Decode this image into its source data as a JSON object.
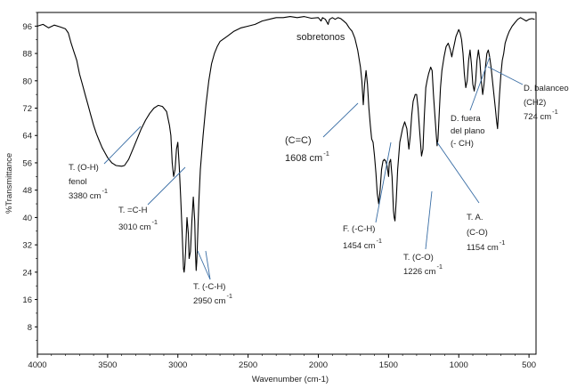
{
  "chart_data": {
    "type": "line",
    "title": "",
    "xlabel": "Wavenumber (cm-1)",
    "ylabel": "%Transmittance",
    "xlim": [
      4000,
      450
    ],
    "ylim": [
      0,
      100
    ],
    "x_ticks": [
      4000,
      3500,
      3000,
      2500,
      2000,
      1500,
      1000,
      500
    ],
    "y_ticks": [
      8,
      16,
      24,
      32,
      40,
      48,
      56,
      64,
      72,
      80,
      88,
      96
    ],
    "grid": false,
    "legend": "none",
    "series": [
      {
        "name": "spectrum",
        "color": "#000000",
        "points": [
          [
            4000,
            96
          ],
          [
            3960,
            96.5
          ],
          [
            3920,
            95.5
          ],
          [
            3880,
            96.3
          ],
          [
            3840,
            95.8
          ],
          [
            3800,
            95.2
          ],
          [
            3780,
            94
          ],
          [
            3760,
            91
          ],
          [
            3740,
            88.5
          ],
          [
            3720,
            86
          ],
          [
            3700,
            82
          ],
          [
            3680,
            79
          ],
          [
            3660,
            76
          ],
          [
            3640,
            73
          ],
          [
            3620,
            70
          ],
          [
            3600,
            67
          ],
          [
            3580,
            64.5
          ],
          [
            3560,
            62.5
          ],
          [
            3540,
            60.5
          ],
          [
            3520,
            59
          ],
          [
            3500,
            57.5
          ],
          [
            3470,
            56
          ],
          [
            3440,
            55.2
          ],
          [
            3400,
            55
          ],
          [
            3380,
            55.2
          ],
          [
            3350,
            57
          ],
          [
            3320,
            60
          ],
          [
            3290,
            63
          ],
          [
            3260,
            66
          ],
          [
            3230,
            68.5
          ],
          [
            3200,
            70.5
          ],
          [
            3170,
            72
          ],
          [
            3140,
            72.8
          ],
          [
            3110,
            72.5
          ],
          [
            3080,
            71
          ],
          [
            3060,
            67
          ],
          [
            3050,
            64
          ],
          [
            3040,
            56
          ],
          [
            3030,
            52
          ],
          [
            3020,
            54
          ],
          [
            3010,
            60
          ],
          [
            3000,
            62
          ],
          [
            2990,
            55
          ],
          [
            2980,
            46
          ],
          [
            2970,
            36
          ],
          [
            2960,
            25
          ],
          [
            2955,
            24
          ],
          [
            2950,
            26
          ],
          [
            2945,
            30
          ],
          [
            2935,
            40
          ],
          [
            2925,
            35
          ],
          [
            2920,
            28
          ],
          [
            2910,
            30
          ],
          [
            2900,
            39
          ],
          [
            2890,
            46
          ],
          [
            2880,
            39
          ],
          [
            2875,
            30
          ],
          [
            2870,
            24.5
          ],
          [
            2865,
            27
          ],
          [
            2860,
            33
          ],
          [
            2850,
            45
          ],
          [
            2840,
            54
          ],
          [
            2820,
            64
          ],
          [
            2800,
            73
          ],
          [
            2780,
            80
          ],
          [
            2760,
            85
          ],
          [
            2740,
            88
          ],
          [
            2720,
            90
          ],
          [
            2700,
            91.5
          ],
          [
            2650,
            93
          ],
          [
            2600,
            94.5
          ],
          [
            2550,
            95.5
          ],
          [
            2500,
            96
          ],
          [
            2450,
            96.5
          ],
          [
            2400,
            97.5
          ],
          [
            2350,
            98
          ],
          [
            2300,
            98.5
          ],
          [
            2250,
            98.5
          ],
          [
            2200,
            98.8
          ],
          [
            2150,
            98.5
          ],
          [
            2100,
            98.8
          ],
          [
            2050,
            98.3
          ],
          [
            2000,
            98.5
          ],
          [
            1980,
            97.5
          ],
          [
            1970,
            98.5
          ],
          [
            1950,
            98
          ],
          [
            1930,
            96.5
          ],
          [
            1920,
            98
          ],
          [
            1900,
            98.5
          ],
          [
            1880,
            98
          ],
          [
            1860,
            98.5
          ],
          [
            1840,
            98.2
          ],
          [
            1820,
            97.5
          ],
          [
            1800,
            96.8
          ],
          [
            1780,
            95.5
          ],
          [
            1760,
            94.5
          ],
          [
            1740,
            92.5
          ],
          [
            1720,
            89
          ],
          [
            1700,
            84
          ],
          [
            1690,
            80
          ],
          [
            1680,
            73
          ],
          [
            1670,
            79
          ],
          [
            1660,
            83
          ],
          [
            1650,
            79
          ],
          [
            1640,
            72
          ],
          [
            1630,
            67
          ],
          [
            1620,
            63
          ],
          [
            1610,
            62
          ],
          [
            1600,
            58
          ],
          [
            1590,
            53
          ],
          [
            1580,
            47
          ],
          [
            1570,
            44
          ],
          [
            1560,
            48
          ],
          [
            1550,
            54
          ],
          [
            1540,
            56.5
          ],
          [
            1530,
            57
          ],
          [
            1520,
            56.5
          ],
          [
            1510,
            55
          ],
          [
            1500,
            52
          ],
          [
            1495,
            56
          ],
          [
            1485,
            57
          ],
          [
            1475,
            52
          ],
          [
            1465,
            42
          ],
          [
            1460,
            40
          ],
          [
            1454,
            39
          ],
          [
            1445,
            45
          ],
          [
            1435,
            54
          ],
          [
            1420,
            62
          ],
          [
            1400,
            66
          ],
          [
            1385,
            68
          ],
          [
            1370,
            66
          ],
          [
            1355,
            60
          ],
          [
            1345,
            64
          ],
          [
            1335,
            70
          ],
          [
            1325,
            74
          ],
          [
            1310,
            76
          ],
          [
            1300,
            76
          ],
          [
            1290,
            72
          ],
          [
            1280,
            66
          ],
          [
            1265,
            58
          ],
          [
            1255,
            60
          ],
          [
            1245,
            70
          ],
          [
            1235,
            78
          ],
          [
            1226,
            80
          ],
          [
            1215,
            82
          ],
          [
            1200,
            84
          ],
          [
            1190,
            83
          ],
          [
            1180,
            76
          ],
          [
            1170,
            70
          ],
          [
            1160,
            64
          ],
          [
            1154,
            61
          ],
          [
            1148,
            63
          ],
          [
            1140,
            70
          ],
          [
            1130,
            78
          ],
          [
            1120,
            83
          ],
          [
            1105,
            87
          ],
          [
            1090,
            90
          ],
          [
            1075,
            91
          ],
          [
            1060,
            89
          ],
          [
            1050,
            87
          ],
          [
            1040,
            89
          ],
          [
            1030,
            91
          ],
          [
            1020,
            93
          ],
          [
            1010,
            94
          ],
          [
            1000,
            95
          ],
          [
            990,
            94
          ],
          [
            980,
            92
          ],
          [
            970,
            88
          ],
          [
            960,
            82
          ],
          [
            950,
            78
          ],
          [
            940,
            80
          ],
          [
            930,
            86
          ],
          [
            920,
            89
          ],
          [
            910,
            85
          ],
          [
            900,
            79
          ],
          [
            890,
            77
          ],
          [
            880,
            80
          ],
          [
            870,
            86
          ],
          [
            860,
            89
          ],
          [
            850,
            86
          ],
          [
            840,
            80
          ],
          [
            830,
            76
          ],
          [
            820,
            79
          ],
          [
            810,
            84
          ],
          [
            800,
            88
          ],
          [
            790,
            89
          ],
          [
            780,
            87
          ],
          [
            770,
            84
          ],
          [
            760,
            80
          ],
          [
            750,
            76
          ],
          [
            740,
            72
          ],
          [
            730,
            68
          ],
          [
            724,
            66
          ],
          [
            718,
            70
          ],
          [
            710,
            76
          ],
          [
            700,
            82
          ],
          [
            690,
            86
          ],
          [
            680,
            88
          ],
          [
            670,
            91
          ],
          [
            655,
            93
          ],
          [
            640,
            94.5
          ],
          [
            620,
            96
          ],
          [
            600,
            97
          ],
          [
            580,
            98
          ],
          [
            560,
            98.5
          ],
          [
            540,
            98
          ],
          [
            520,
            97.5
          ],
          [
            500,
            98
          ],
          [
            480,
            98.2
          ],
          [
            460,
            98
          ]
        ]
      }
    ],
    "annotations": [
      {
        "lines": [
          "T. (O-H)",
          "fenol",
          "3380 cm"
        ],
        "sup": "-1"
      },
      {
        "lines": [
          "T. =C-H",
          "3010 cm"
        ],
        "sup": "-1"
      },
      {
        "lines": [
          "T. (-C-H)",
          "2950 cm"
        ],
        "sup": "-1"
      },
      {
        "lines": [
          "sobretonos"
        ],
        "sup": ""
      },
      {
        "lines": [
          "(C=C)",
          "1608 cm"
        ],
        "sup": "-1"
      },
      {
        "lines": [
          "F. (-C-H)",
          "1454 cm"
        ],
        "sup": "-1"
      },
      {
        "lines": [
          "T. (C-O)",
          "1226 cm"
        ],
        "sup": "-1"
      },
      {
        "lines": [
          "T. A.",
          "(C-O)",
          "1154 cm"
        ],
        "sup": "-1"
      },
      {
        "lines": [
          "D. fuera",
          "del plano",
          "(- CH)"
        ],
        "sup": ""
      },
      {
        "lines": [
          "D. balanceo",
          "(CH2)",
          "724 cm"
        ],
        "sup": "-1"
      }
    ]
  }
}
